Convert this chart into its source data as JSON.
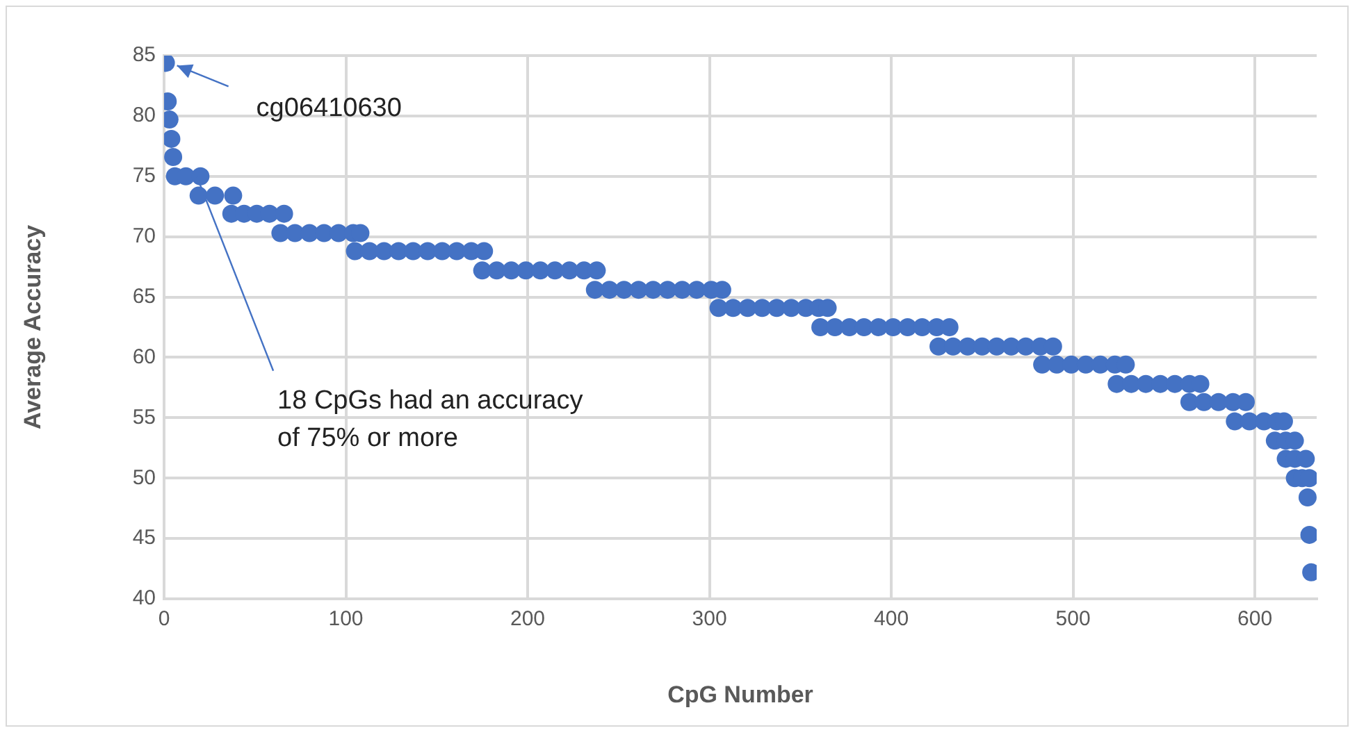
{
  "chart_data": {
    "type": "scatter",
    "xlabel": "CpG Number",
    "ylabel": "Average Accuracy",
    "xlim": [
      0,
      634
    ],
    "xticks": [
      0,
      100,
      200,
      300,
      400,
      500,
      600
    ],
    "ylim": [
      40,
      85
    ],
    "yticks": [
      40,
      45,
      50,
      55,
      60,
      65,
      70,
      75,
      80,
      85
    ],
    "grid": true,
    "legend": false,
    "marker": "circle",
    "annotations": [
      {
        "text": "cg06410630",
        "x": 1,
        "y": 84.4
      },
      {
        "text": "18 CpGs had an accuracy\nof 75% or more",
        "x": 18,
        "y": 75
      }
    ],
    "series": [
      {
        "color": "#4472c4",
        "x": [
          1,
          2,
          3,
          4,
          5,
          6,
          12,
          20,
          19,
          28,
          38,
          37,
          44,
          51,
          58,
          66,
          64,
          72,
          80,
          88,
          96,
          104,
          108,
          105,
          113,
          121,
          129,
          137,
          145,
          153,
          161,
          169,
          176,
          175,
          183,
          191,
          199,
          207,
          215,
          223,
          231,
          238,
          237,
          245,
          253,
          261,
          269,
          277,
          285,
          293,
          301,
          307,
          305,
          313,
          321,
          329,
          337,
          345,
          353,
          360,
          365,
          361,
          369,
          377,
          385,
          393,
          401,
          409,
          417,
          425,
          432,
          426,
          434,
          442,
          450,
          458,
          466,
          474,
          482,
          489,
          483,
          491,
          499,
          507,
          515,
          523,
          529,
          524,
          532,
          540,
          548,
          556,
          564,
          570,
          564,
          572,
          580,
          588,
          595,
          589,
          597,
          605,
          612,
          616,
          611,
          617,
          622,
          617,
          622,
          628,
          622,
          626,
          630,
          629,
          630,
          631
        ],
        "values": [
          84.4,
          81.2,
          79.7,
          78.1,
          76.6,
          75,
          75,
          75,
          73.4,
          73.4,
          73.4,
          71.9,
          71.9,
          71.9,
          71.9,
          71.9,
          70.3,
          70.3,
          70.3,
          70.3,
          70.3,
          70.3,
          70.3,
          68.8,
          68.8,
          68.8,
          68.8,
          68.8,
          68.8,
          68.8,
          68.8,
          68.8,
          68.8,
          67.2,
          67.2,
          67.2,
          67.2,
          67.2,
          67.2,
          67.2,
          67.2,
          67.2,
          65.6,
          65.6,
          65.6,
          65.6,
          65.6,
          65.6,
          65.6,
          65.6,
          65.6,
          65.6,
          64.1,
          64.1,
          64.1,
          64.1,
          64.1,
          64.1,
          64.1,
          64.1,
          64.1,
          62.5,
          62.5,
          62.5,
          62.5,
          62.5,
          62.5,
          62.5,
          62.5,
          62.5,
          62.5,
          60.9,
          60.9,
          60.9,
          60.9,
          60.9,
          60.9,
          60.9,
          60.9,
          60.9,
          59.4,
          59.4,
          59.4,
          59.4,
          59.4,
          59.4,
          59.4,
          57.8,
          57.8,
          57.8,
          57.8,
          57.8,
          57.8,
          57.8,
          56.3,
          56.3,
          56.3,
          56.3,
          56.3,
          54.7,
          54.7,
          54.7,
          54.7,
          54.7,
          53.1,
          53.1,
          53.1,
          51.6,
          51.6,
          51.6,
          50,
          50,
          50,
          48.4,
          45.3,
          42.2
        ]
      }
    ]
  }
}
